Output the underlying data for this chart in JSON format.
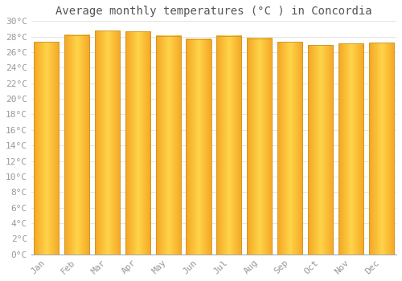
{
  "title": "Average monthly temperatures (°C ) in Concordia",
  "months": [
    "Jan",
    "Feb",
    "Mar",
    "Apr",
    "May",
    "Jun",
    "Jul",
    "Aug",
    "Sep",
    "Oct",
    "Nov",
    "Dec"
  ],
  "temperatures": [
    27.3,
    28.2,
    28.8,
    28.7,
    28.1,
    27.7,
    28.1,
    27.8,
    27.3,
    26.9,
    27.1,
    27.2
  ],
  "ylim": [
    0,
    30
  ],
  "yticks": [
    0,
    2,
    4,
    6,
    8,
    10,
    12,
    14,
    16,
    18,
    20,
    22,
    24,
    26,
    28,
    30
  ],
  "bar_color_center": "#FFD44A",
  "bar_color_edge": "#F5A623",
  "bar_border_color": "#C8962A",
  "background_color": "#FFFFFF",
  "grid_color": "#E0E0E0",
  "title_fontsize": 10,
  "tick_fontsize": 8,
  "tick_label_color": "#999999",
  "title_color": "#555555",
  "bar_width": 0.82
}
